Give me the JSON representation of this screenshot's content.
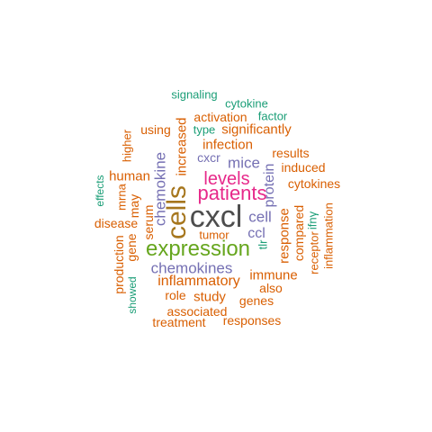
{
  "palette": {
    "dark_gray": "#4d4d4d",
    "gold": "#a6761d",
    "green": "#66a61e",
    "magenta": "#e7298a",
    "purple": "#7570b3",
    "orange": "#d95f02",
    "teal": "#1b9e77"
  },
  "words": [
    {
      "text": "cxcl",
      "color": "#4d4d4d"
    },
    {
      "text": "cells",
      "color": "#a6761d"
    },
    {
      "text": "expression",
      "color": "#66a61e"
    },
    {
      "text": "patients",
      "color": "#e7298a"
    },
    {
      "text": "levels",
      "color": "#e7298a"
    },
    {
      "text": "chemokines",
      "color": "#7570b3"
    },
    {
      "text": "chemokine",
      "color": "#7570b3"
    },
    {
      "text": "mice",
      "color": "#7570b3"
    },
    {
      "text": "cell",
      "color": "#7570b3"
    },
    {
      "text": "ccl",
      "color": "#7570b3"
    },
    {
      "text": "protein",
      "color": "#7570b3"
    },
    {
      "text": "cxcr",
      "color": "#7570b3"
    },
    {
      "text": "tlr",
      "color": "#1b9e77"
    },
    {
      "text": "inflammatory",
      "color": "#d95f02"
    },
    {
      "text": "infection",
      "color": "#d95f02"
    },
    {
      "text": "increased",
      "color": "#d95f02"
    },
    {
      "text": "significantly",
      "color": "#d95f02"
    },
    {
      "text": "activation",
      "color": "#d95f02"
    },
    {
      "text": "human",
      "color": "#d95f02"
    },
    {
      "text": "immune",
      "color": "#d95f02"
    },
    {
      "text": "study",
      "color": "#d95f02"
    },
    {
      "text": "role",
      "color": "#d95f02"
    },
    {
      "text": "genes",
      "color": "#d95f02"
    },
    {
      "text": "associated",
      "color": "#d95f02"
    },
    {
      "text": "response",
      "color": "#d95f02"
    },
    {
      "text": "serum",
      "color": "#d95f02"
    },
    {
      "text": "disease",
      "color": "#d95f02"
    },
    {
      "text": "may",
      "color": "#d95f02"
    },
    {
      "text": "gene",
      "color": "#d95f02"
    },
    {
      "text": "cytokines",
      "color": "#d95f02"
    },
    {
      "text": "induced",
      "color": "#d95f02"
    },
    {
      "text": "results",
      "color": "#d95f02"
    },
    {
      "text": "compared",
      "color": "#d95f02"
    },
    {
      "text": "production",
      "color": "#d95f02"
    },
    {
      "text": "tumor",
      "color": "#d95f02"
    },
    {
      "text": "also",
      "color": "#d95f02"
    },
    {
      "text": "treatment",
      "color": "#d95f02"
    },
    {
      "text": "responses",
      "color": "#d95f02"
    },
    {
      "text": "using",
      "color": "#d95f02"
    },
    {
      "text": "higher",
      "color": "#d95f02"
    },
    {
      "text": "mrna",
      "color": "#d95f02"
    },
    {
      "text": "receptor",
      "color": "#d95f02"
    },
    {
      "text": "inflammation",
      "color": "#d95f02"
    },
    {
      "text": "ifnγ",
      "color": "#1b9e77"
    },
    {
      "text": "signaling",
      "color": "#1b9e77"
    },
    {
      "text": "cytokine",
      "color": "#1b9e77"
    },
    {
      "text": "factor",
      "color": "#1b9e77"
    },
    {
      "text": "type",
      "color": "#1b9e77"
    },
    {
      "text": "effects",
      "color": "#1b9e77"
    },
    {
      "text": "showed",
      "color": "#1b9e77"
    }
  ]
}
